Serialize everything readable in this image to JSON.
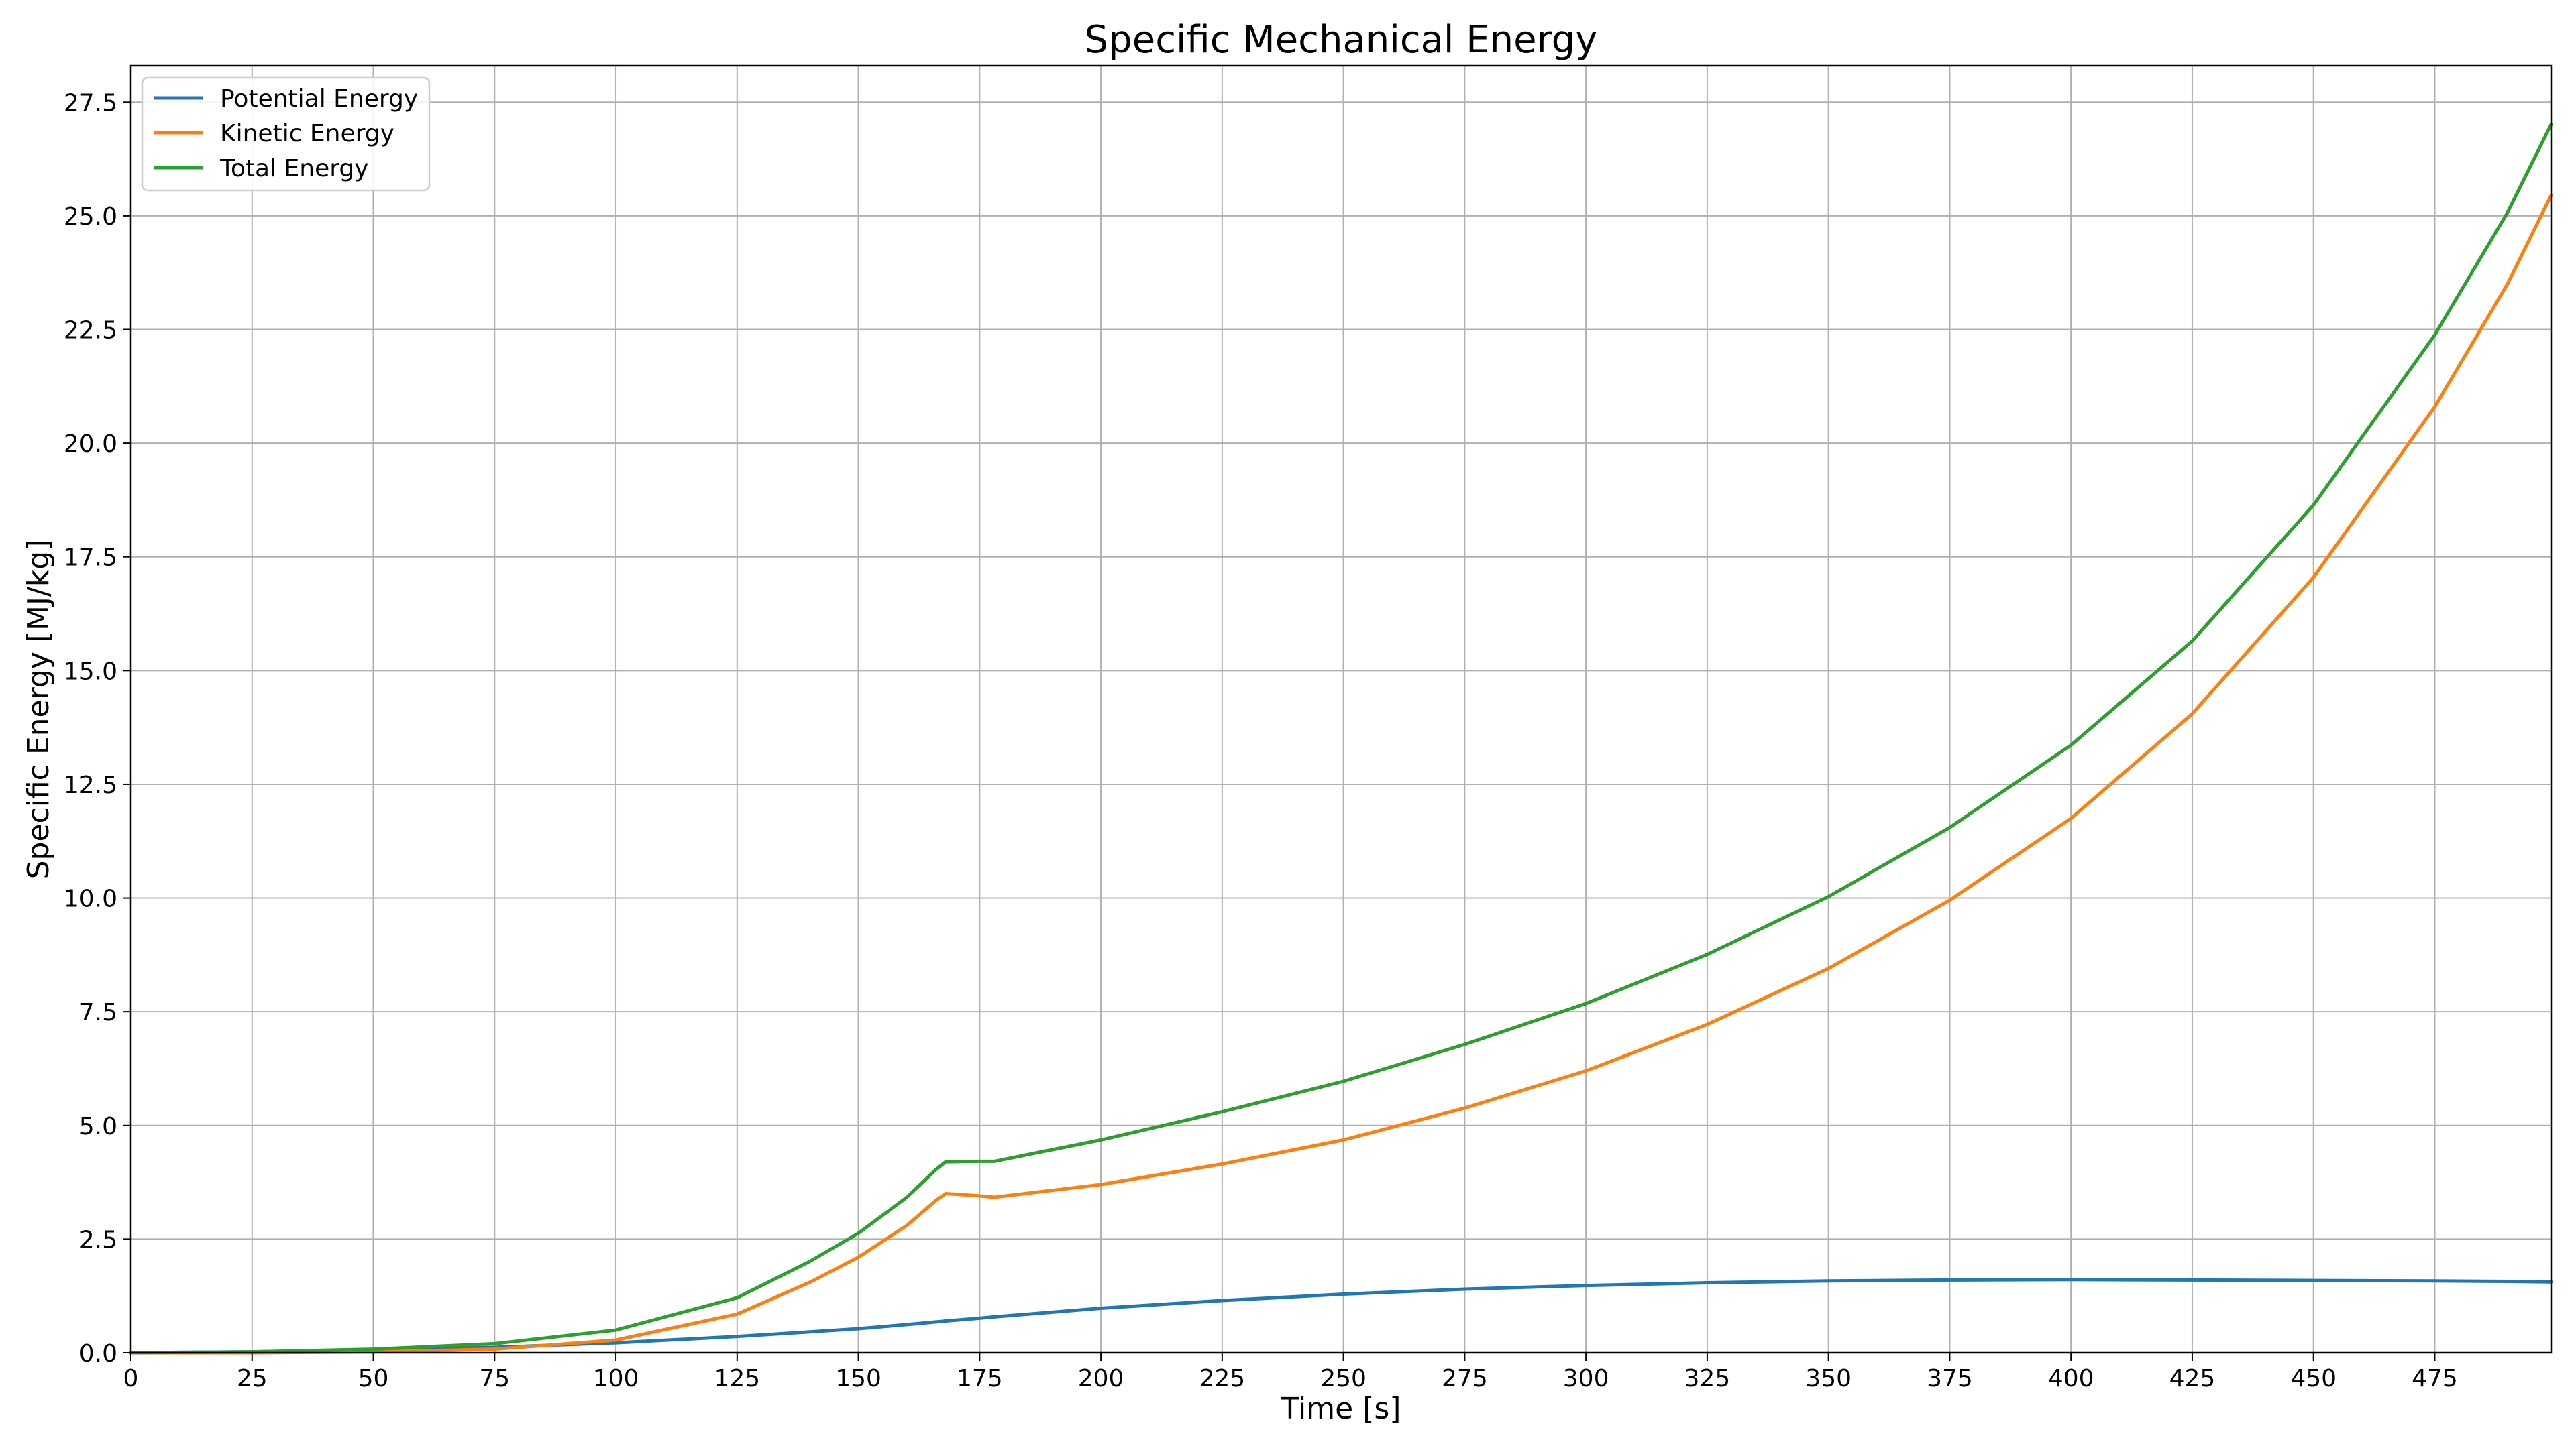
{
  "chart_data": {
    "type": "line",
    "title": "Specific Mechanical Energy",
    "xlabel": "Time [s]",
    "ylabel": "Specific Energy [MJ/kg]",
    "xlim": [
      0,
      499
    ],
    "ylim": [
      0,
      28.3
    ],
    "xticks": [
      0,
      25,
      50,
      75,
      100,
      125,
      150,
      175,
      200,
      225,
      250,
      275,
      300,
      325,
      350,
      375,
      400,
      425,
      450,
      475
    ],
    "yticks": [
      0.0,
      2.5,
      5.0,
      7.5,
      10.0,
      12.5,
      15.0,
      17.5,
      20.0,
      22.5,
      25.0,
      27.5
    ],
    "grid": true,
    "legend_position": "top-left",
    "x": [
      0,
      25,
      50,
      75,
      100,
      125,
      140,
      150,
      160,
      166,
      168,
      175,
      178,
      200,
      225,
      250,
      275,
      300,
      325,
      350,
      375,
      400,
      425,
      450,
      475,
      490,
      499
    ],
    "series": [
      {
        "name": "Potential Energy",
        "color": "#1f77b4",
        "values": [
          0.0,
          0.02,
          0.06,
          0.12,
          0.22,
          0.36,
          0.46,
          0.53,
          0.62,
          0.68,
          0.7,
          0.76,
          0.79,
          0.98,
          1.15,
          1.29,
          1.4,
          1.48,
          1.54,
          1.58,
          1.6,
          1.61,
          1.6,
          1.59,
          1.58,
          1.57,
          1.56
        ]
      },
      {
        "name": "Kinetic Energy",
        "color": "#ff7f0e",
        "values": [
          0.0,
          0.0,
          0.02,
          0.08,
          0.28,
          0.85,
          1.55,
          2.1,
          2.8,
          3.35,
          3.5,
          3.45,
          3.42,
          3.7,
          4.15,
          4.68,
          5.38,
          6.2,
          7.22,
          8.45,
          9.95,
          11.75,
          14.05,
          17.05,
          20.8,
          23.5,
          25.45
        ]
      },
      {
        "name": "Total Energy",
        "color": "#2ca02c",
        "values": [
          0.0,
          0.02,
          0.08,
          0.2,
          0.5,
          1.21,
          2.01,
          2.63,
          3.42,
          4.03,
          4.2,
          4.21,
          4.21,
          4.68,
          5.3,
          5.97,
          6.78,
          7.68,
          8.76,
          10.03,
          11.55,
          13.36,
          15.65,
          18.64,
          22.38,
          25.07,
          27.01
        ]
      }
    ]
  }
}
